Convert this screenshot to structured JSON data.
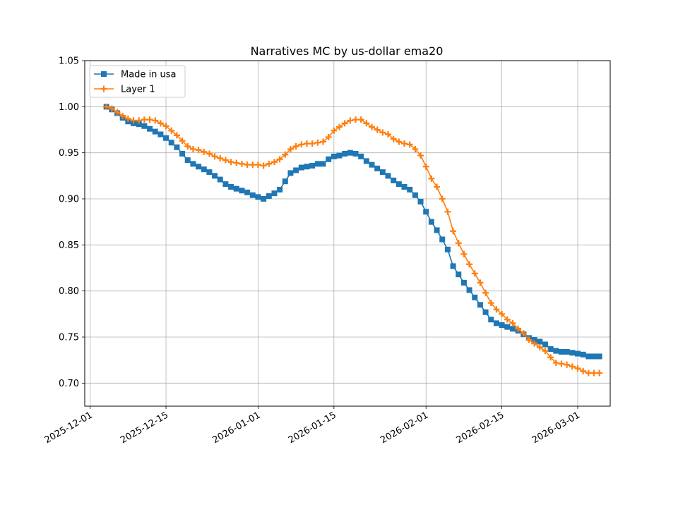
{
  "chart_data": {
    "type": "line",
    "title": "Narratives MC by us-dollar ema20",
    "xlabel": "",
    "ylabel": "",
    "x_start": "2025-12-04",
    "x_step_days": 1,
    "xlim": [
      "2025-11-30",
      "2026-03-07"
    ],
    "ylim": [
      0.675,
      1.05
    ],
    "x_ticks": [
      "2025-12-01",
      "2025-12-15",
      "2026-01-01",
      "2026-01-15",
      "2026-02-01",
      "2026-02-15",
      "2026-03-01"
    ],
    "y_ticks": [
      "0.70",
      "0.75",
      "0.80",
      "0.85",
      "0.90",
      "0.95",
      "1.00",
      "1.05"
    ],
    "grid": true,
    "legend_position": "upper-left",
    "series": [
      {
        "name": "Made in usa",
        "color": "#1f77b4",
        "marker": "square",
        "values": [
          1.0,
          0.997,
          0.993,
          0.988,
          0.984,
          0.982,
          0.981,
          0.979,
          0.976,
          0.973,
          0.97,
          0.966,
          0.961,
          0.956,
          0.949,
          0.942,
          0.938,
          0.935,
          0.932,
          0.929,
          0.925,
          0.921,
          0.916,
          0.913,
          0.911,
          0.909,
          0.907,
          0.904,
          0.902,
          0.9,
          0.903,
          0.906,
          0.91,
          0.919,
          0.928,
          0.931,
          0.934,
          0.935,
          0.936,
          0.938,
          0.938,
          0.943,
          0.946,
          0.947,
          0.949,
          0.95,
          0.949,
          0.946,
          0.941,
          0.937,
          0.933,
          0.929,
          0.925,
          0.92,
          0.916,
          0.913,
          0.91,
          0.904,
          0.897,
          0.886,
          0.875,
          0.866,
          0.856,
          0.845,
          0.827,
          0.818,
          0.809,
          0.801,
          0.793,
          0.785,
          0.777,
          0.769,
          0.765,
          0.763,
          0.761,
          0.759,
          0.757,
          0.753,
          0.749,
          0.747,
          0.745,
          0.742,
          0.737,
          0.735,
          0.734,
          0.734,
          0.733,
          0.732,
          0.731,
          0.729,
          0.729,
          0.729
        ]
      },
      {
        "name": "Layer 1",
        "color": "#ff7f0e",
        "marker": "plus",
        "values": [
          1.0,
          0.998,
          0.994,
          0.99,
          0.987,
          0.985,
          0.985,
          0.986,
          0.986,
          0.985,
          0.982,
          0.979,
          0.974,
          0.969,
          0.963,
          0.957,
          0.954,
          0.953,
          0.951,
          0.949,
          0.946,
          0.944,
          0.942,
          0.94,
          0.939,
          0.938,
          0.937,
          0.937,
          0.937,
          0.936,
          0.938,
          0.94,
          0.943,
          0.948,
          0.954,
          0.957,
          0.959,
          0.96,
          0.96,
          0.961,
          0.962,
          0.967,
          0.974,
          0.978,
          0.982,
          0.985,
          0.986,
          0.986,
          0.982,
          0.978,
          0.975,
          0.972,
          0.97,
          0.965,
          0.962,
          0.96,
          0.959,
          0.954,
          0.947,
          0.935,
          0.922,
          0.913,
          0.9,
          0.886,
          0.865,
          0.852,
          0.84,
          0.829,
          0.819,
          0.809,
          0.798,
          0.787,
          0.78,
          0.775,
          0.769,
          0.765,
          0.759,
          0.754,
          0.747,
          0.743,
          0.739,
          0.735,
          0.728,
          0.722,
          0.721,
          0.72,
          0.718,
          0.716,
          0.713,
          0.711,
          0.711,
          0.711
        ]
      }
    ]
  }
}
